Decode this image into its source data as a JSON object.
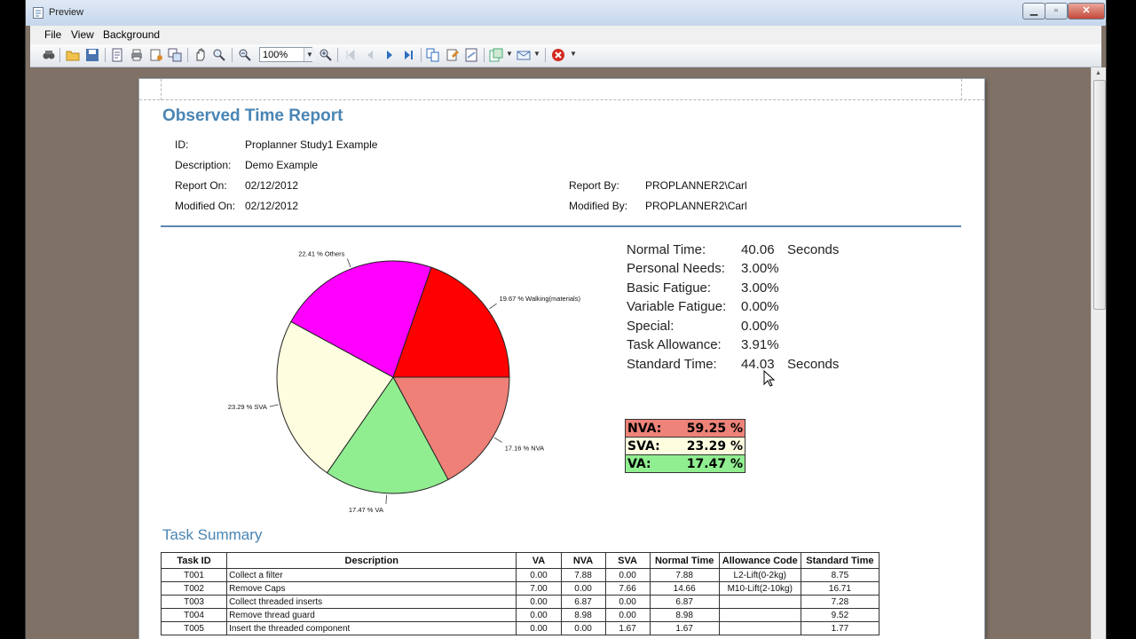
{
  "window": {
    "title": "Preview"
  },
  "menu": [
    "File",
    "View",
    "Background"
  ],
  "toolbar": {
    "zoom": "100%"
  },
  "report": {
    "title": "Observed Time Report",
    "info": [
      {
        "label": "ID:",
        "value": "Proplanner Study1 Example"
      },
      {
        "label": "Description:",
        "value": "Demo Example"
      },
      {
        "label": "Report On:",
        "value": "02/12/2012"
      },
      {
        "label": "Modified On:",
        "value": "02/12/2012"
      },
      {
        "label": "Report By:",
        "value": "PROPLANNER2\\Carl"
      },
      {
        "label": "Modified By:",
        "value": "PROPLANNER2\\Carl"
      }
    ],
    "stats": [
      {
        "label": "Normal Time:",
        "value": "40.06",
        "unit": "Seconds"
      },
      {
        "label": "Personal Needs:",
        "value": "3.00%",
        "unit": ""
      },
      {
        "label": "Basic Fatigue:",
        "value": "3.00%",
        "unit": ""
      },
      {
        "label": "Variable Fatigue:",
        "value": "0.00%",
        "unit": ""
      },
      {
        "label": "Special:",
        "value": "0.00%",
        "unit": ""
      },
      {
        "label": "Task Allowance:",
        "value": "3.91%",
        "unit": ""
      },
      {
        "label": "Standard Time:",
        "value": "44.03",
        "unit": "Seconds"
      }
    ],
    "category_totals": [
      {
        "label": "NVA:",
        "value": "59.25",
        "pct": "%",
        "color": "#ee8379"
      },
      {
        "label": "SVA:",
        "value": "23.29",
        "pct": "%",
        "color": "#fffde0"
      },
      {
        "label": "VA:",
        "value": "17.47",
        "pct": "%",
        "color": "#90ee90"
      }
    ],
    "task_summary_title": "Task Summary",
    "task_columns": [
      "Task ID",
      "Description",
      "VA",
      "NVA",
      "SVA",
      "Normal Time",
      "Allowance Code",
      "Standard Time"
    ],
    "tasks": [
      [
        "T001",
        "Collect a filter",
        "0.00",
        "7.88",
        "0.00",
        "7.88",
        "L2-Lift(0-2kg)",
        "8.75"
      ],
      [
        "T002",
        "Remove Caps",
        "7.00",
        "0.00",
        "7.66",
        "14.66",
        "M10-Lift(2-10kg)",
        "16.71"
      ],
      [
        "T003",
        "Collect threaded inserts",
        "0.00",
        "6.87",
        "0.00",
        "6.87",
        "",
        "7.28"
      ],
      [
        "T004",
        "Remove thread guard",
        "0.00",
        "8.98",
        "0.00",
        "8.98",
        "",
        "9.52"
      ],
      [
        "T005",
        "Insert the threaded component",
        "0.00",
        "0.00",
        "1.67",
        "1.67",
        "",
        "1.77"
      ]
    ]
  },
  "chart_data": {
    "type": "pie",
    "slices": [
      {
        "label": "17.16 % NVA",
        "value": 17.16,
        "color": "#ee8078"
      },
      {
        "label": "17.47 % VA",
        "value": 17.47,
        "color": "#90ee90"
      },
      {
        "label": "23.29 % SVA",
        "value": 23.29,
        "color": "#fffde0"
      },
      {
        "label": "22.41 % Others",
        "value": 22.41,
        "color": "#ff00ff"
      },
      {
        "label": "19.67 % Walking(materials)",
        "value": 19.67,
        "color": "#ff0000"
      }
    ],
    "start_angle_deg": 0,
    "direction": "clockwise"
  }
}
